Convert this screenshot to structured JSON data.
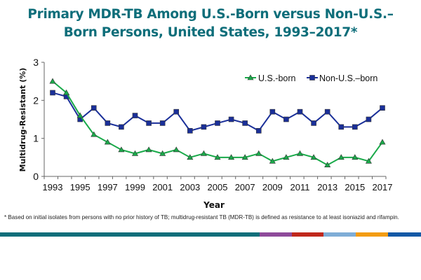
{
  "title_line1": "Primary MDR-TB Among U.S.-Born versus Non-U.S.–",
  "title_line2": "Born Persons, United States, 1993–2017*",
  "footnote": "*   Based on initial isolates from persons with no prior history of TB; multidrug-resistant TB (MDR-TB) is defined as resistance to at least isoniazid and rifampin.",
  "colors": {
    "title": "#0e6e7a",
    "us_born": "#1aaa4a",
    "non_us_born": "#1a2f99",
    "bottom_bar": [
      "#0e6e7a",
      "#8e4a9a",
      "#c0281c",
      "#7fadd6",
      "#f39c12",
      "#1459a6"
    ]
  },
  "chart_data": {
    "type": "line",
    "title": "Primary MDR-TB Among U.S.-Born versus Non-U.S.–Born Persons, United States, 1993–2017*",
    "xlabel": "Year",
    "ylabel": "Multidrug-Resistant (%)",
    "ylim": [
      0,
      3
    ],
    "yticks": [
      "0",
      "1",
      "2",
      "3"
    ],
    "x": [
      1993,
      1994,
      1995,
      1996,
      1997,
      1998,
      1999,
      2000,
      2001,
      2002,
      2003,
      2004,
      2005,
      2006,
      2007,
      2008,
      2009,
      2010,
      2011,
      2012,
      2013,
      2014,
      2015,
      2016,
      2017
    ],
    "xtick_labels": [
      "1993",
      "1995",
      "1997",
      "1999",
      "2001",
      "2003",
      "2005",
      "2007",
      "2009",
      "2011",
      "2013",
      "2015",
      "2017"
    ],
    "grid": false,
    "legend_position": "top-right",
    "series": [
      {
        "name": "U.S.-born",
        "marker": "triangle",
        "values": [
          2.5,
          2.2,
          1.6,
          1.1,
          0.9,
          0.7,
          0.6,
          0.7,
          0.6,
          0.7,
          0.5,
          0.6,
          0.5,
          0.5,
          0.5,
          0.6,
          0.4,
          0.5,
          0.6,
          0.5,
          0.3,
          0.5,
          0.5,
          0.4,
          0.9
        ]
      },
      {
        "name": "Non-U.S.–born",
        "marker": "square",
        "values": [
          2.2,
          2.1,
          1.5,
          1.8,
          1.4,
          1.3,
          1.6,
          1.4,
          1.4,
          1.7,
          1.2,
          1.3,
          1.4,
          1.5,
          1.4,
          1.2,
          1.7,
          1.5,
          1.7,
          1.4,
          1.7,
          1.3,
          1.3,
          1.5,
          1.8
        ]
      }
    ]
  }
}
